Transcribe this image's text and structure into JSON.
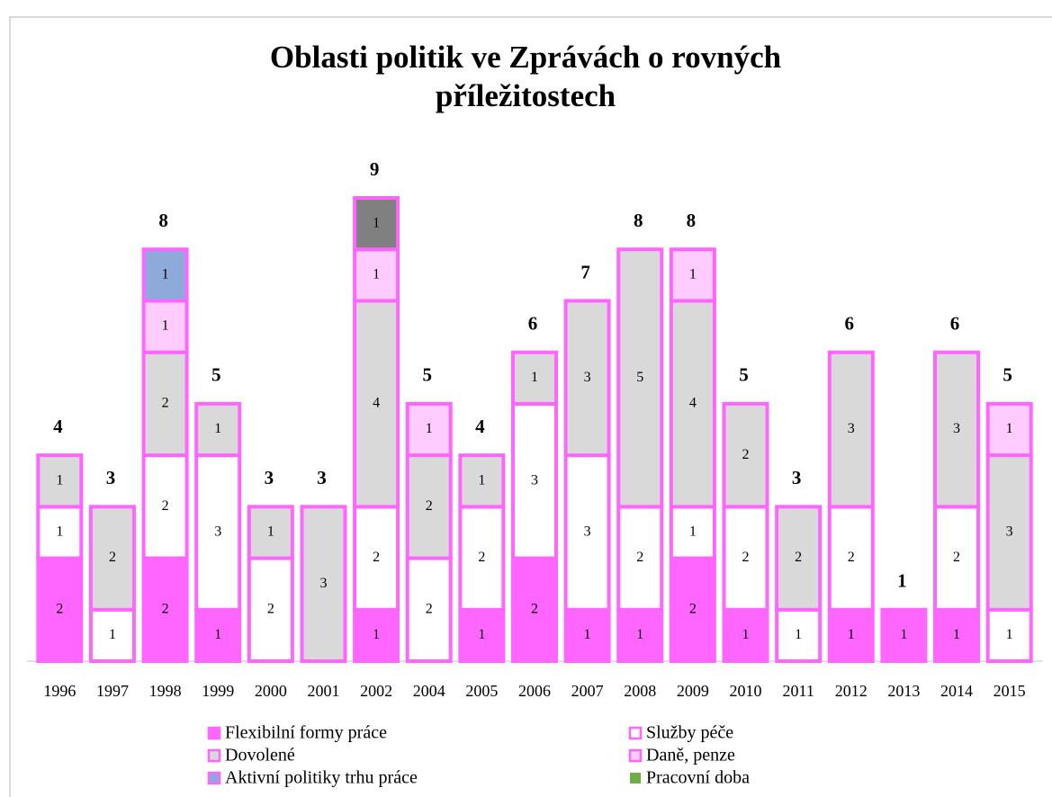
{
  "chart_data": {
    "type": "stacked_bar",
    "title": "Oblasti politik ve Zprávách o rovných příležitostech",
    "categories": [
      "1996",
      "1997",
      "1998",
      "1999",
      "2000",
      "2001",
      "2002",
      "2004",
      "2005",
      "2006",
      "2007",
      "2008",
      "2009",
      "2010",
      "2011",
      "2012",
      "2013",
      "2014",
      "2015"
    ],
    "series": [
      {
        "name": "Flexibilní formy práce",
        "color": "#ff66ff",
        "values": [
          2,
          null,
          2,
          1,
          null,
          null,
          1,
          null,
          1,
          2,
          1,
          1,
          2,
          1,
          null,
          1,
          1,
          1,
          null
        ]
      },
      {
        "name": "Služby péče",
        "color": "#ffffff",
        "values": [
          1,
          1,
          2,
          3,
          2,
          null,
          2,
          2,
          2,
          3,
          3,
          2,
          1,
          2,
          1,
          2,
          null,
          2,
          1
        ]
      },
      {
        "name": "Dovolené",
        "color": "#d9d9d9",
        "values": [
          1,
          2,
          2,
          1,
          1,
          3,
          4,
          2,
          1,
          1,
          3,
          5,
          4,
          2,
          2,
          3,
          null,
          3,
          3
        ]
      },
      {
        "name": "Daně, penze",
        "color": "#ffccff",
        "values": [
          null,
          null,
          1,
          null,
          null,
          null,
          1,
          1,
          null,
          null,
          null,
          null,
          1,
          null,
          null,
          null,
          null,
          null,
          1
        ]
      },
      {
        "name": "Aktivní politiky trhu práce",
        "color": "#8eaadb",
        "values": [
          null,
          null,
          1,
          null,
          null,
          null,
          null,
          null,
          null,
          null,
          null,
          null,
          null,
          null,
          null,
          null,
          null,
          null,
          null
        ]
      },
      {
        "name": "Pracovní doba",
        "color": "#808080",
        "legend_color": "#70ad47",
        "values": [
          null,
          null,
          null,
          null,
          null,
          null,
          1,
          null,
          null,
          null,
          null,
          null,
          null,
          null,
          null,
          null,
          null,
          null,
          null
        ]
      }
    ],
    "totals": [
      4,
      3,
      8,
      5,
      3,
      3,
      9,
      5,
      4,
      6,
      7,
      8,
      8,
      5,
      3,
      6,
      1,
      6,
      5
    ],
    "border_color": "#ff66ff",
    "ylim": [
      0,
      9
    ]
  }
}
